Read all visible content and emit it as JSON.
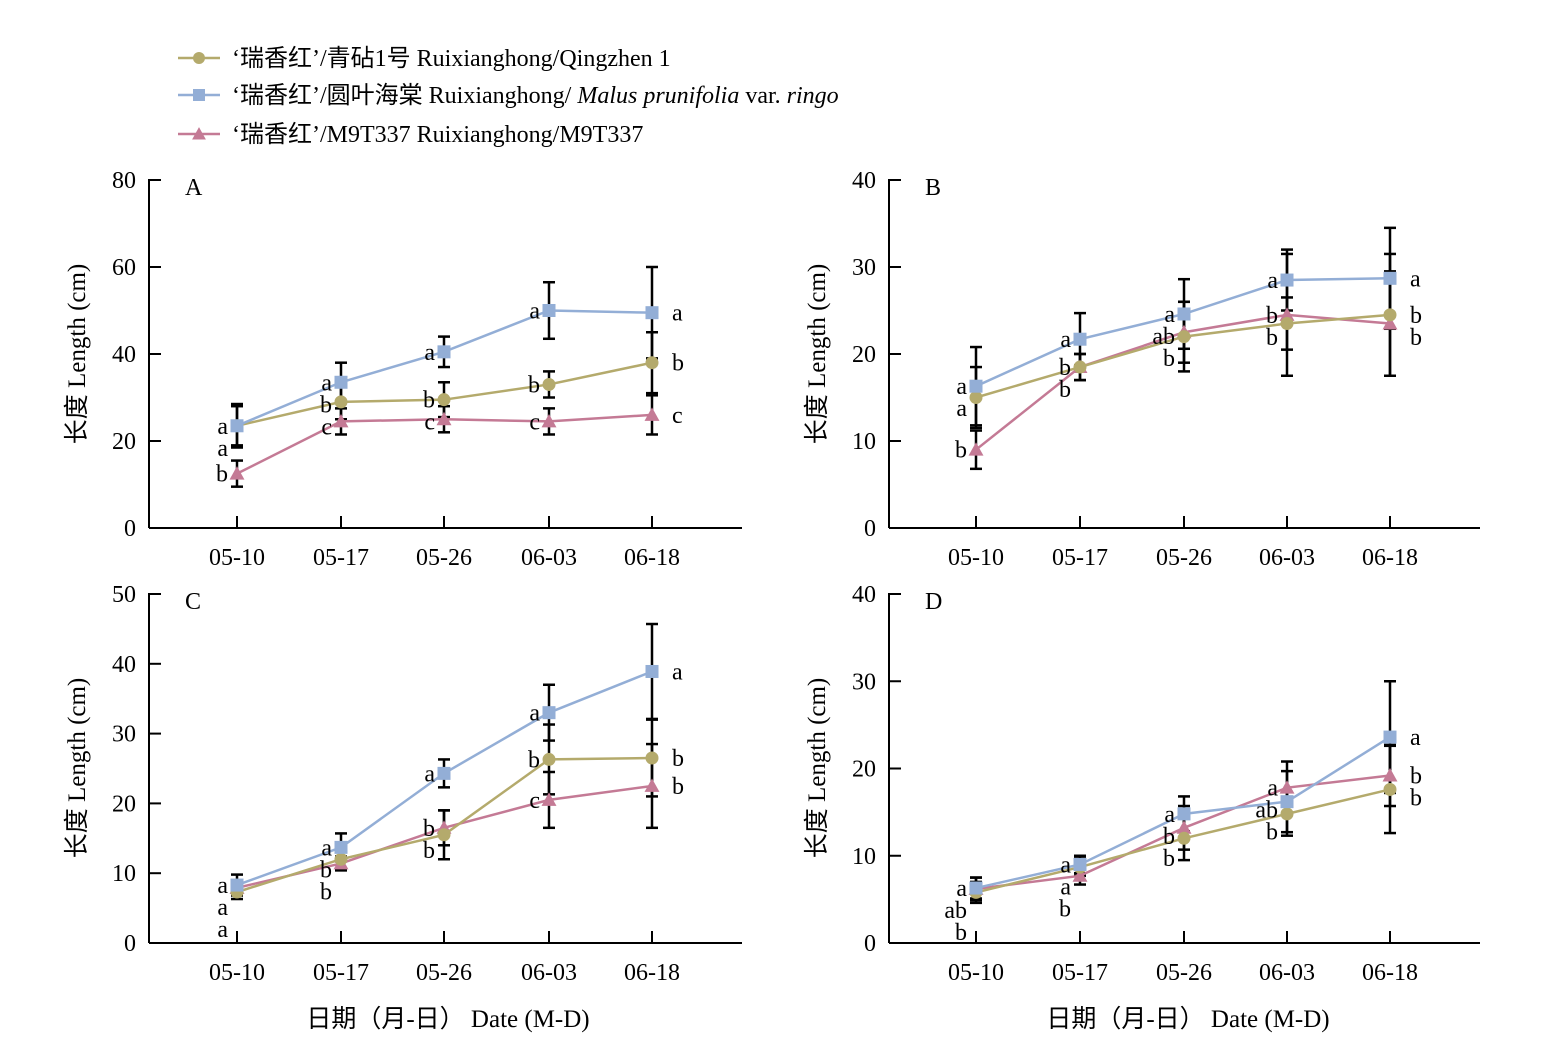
{
  "colors": {
    "series_1": "#b4aa6c",
    "series_2": "#93aed6",
    "series_3": "#c47a95",
    "axis": "#000000",
    "error_bar": "#000000"
  },
  "legend": {
    "items": [
      {
        "marker": "circle",
        "prefix": "‘瑞香红’/青砧1号 Ruixianghong/Qingzhen 1",
        "italic1": "",
        "mid": "",
        "italic2": ""
      },
      {
        "marker": "square",
        "prefix": "‘瑞香红’/圆叶海棠 Ruixianghong/ ",
        "italic1": "Malus prunifolia",
        "mid": " var. ",
        "italic2": "ringo"
      },
      {
        "marker": "triangle",
        "prefix": "‘瑞香红’/M9T337 Ruixianghong/M9T337",
        "italic1": "",
        "mid": "",
        "italic2": ""
      }
    ]
  },
  "x_axis_title": "日期（月-日） Date (M-D)",
  "chart_data": [
    {
      "type": "line",
      "panel_label": "A",
      "ylabel": "长度 Length (cm)",
      "categories": [
        "05-10",
        "05-17",
        "05-26",
        "06-03",
        "06-18"
      ],
      "ylim": [
        0,
        80
      ],
      "yticks": [
        0,
        20,
        40,
        60,
        80
      ],
      "series": [
        {
          "values": [
            23.5,
            29,
            29.5,
            33,
            38
          ],
          "err": [
            5,
            4,
            4,
            3,
            7
          ],
          "letters": [
            "a",
            "b",
            "b",
            "b",
            "b"
          ]
        },
        {
          "values": [
            23.5,
            33.5,
            40.5,
            50,
            49.5
          ],
          "err": [
            4.5,
            4.5,
            3.5,
            6.5,
            10.5
          ],
          "letters": [
            "a",
            "a",
            "a",
            "a",
            "a"
          ]
        },
        {
          "values": [
            12.5,
            24.5,
            25,
            24.5,
            26
          ],
          "err": [
            3,
            3,
            3,
            3,
            4.5
          ],
          "letters": [
            "b",
            "c",
            "c",
            "c",
            "c"
          ]
        }
      ]
    },
    {
      "type": "line",
      "panel_label": "B",
      "ylabel": "长度 Length (cm)",
      "categories": [
        "05-10",
        "05-17",
        "05-26",
        "06-03",
        "06-18"
      ],
      "ylim": [
        0,
        40
      ],
      "yticks": [
        0,
        10,
        20,
        30,
        40
      ],
      "series": [
        {
          "values": [
            15,
            18.5,
            22,
            23.5,
            24.5
          ],
          "err": [
            3.5,
            1.5,
            4,
            3,
            7
          ],
          "letters": [
            "a",
            "b",
            "b",
            "b",
            "b"
          ]
        },
        {
          "values": [
            16.3,
            21.7,
            24.6,
            28.5,
            28.7
          ],
          "err": [
            4.5,
            3,
            4,
            3.5,
            5.8
          ],
          "letters": [
            "a",
            "a",
            "a",
            "a",
            "a"
          ]
        },
        {
          "values": [
            9,
            18.5,
            22.5,
            24.5,
            23.5
          ],
          "err": [
            2.2,
            1.5,
            3.5,
            7,
            6
          ],
          "letters": [
            "b",
            "b",
            "ab",
            "b",
            "b"
          ]
        }
      ]
    },
    {
      "type": "line",
      "panel_label": "C",
      "ylabel": "长度 Length (cm)",
      "categories": [
        "05-10",
        "05-17",
        "05-26",
        "06-03",
        "06-18"
      ],
      "ylim": [
        0,
        50
      ],
      "yticks": [
        0,
        10,
        20,
        30,
        40,
        50
      ],
      "series": [
        {
          "values": [
            7.3,
            12,
            15.5,
            26.3,
            26.5
          ],
          "err": [
            1,
            1.5,
            3.5,
            5,
            5.5
          ],
          "letters": [
            "a",
            "b",
            "b",
            "b",
            "b"
          ]
        },
        {
          "values": [
            8.3,
            13.7,
            24.3,
            33,
            38.9
          ],
          "err": [
            1.5,
            2,
            2,
            4,
            6.8
          ],
          "letters": [
            "a",
            "a",
            "a",
            "a",
            "a"
          ]
        },
        {
          "values": [
            7.9,
            11.4,
            16.5,
            20.5,
            22.5
          ],
          "err": [
            1,
            1,
            2.5,
            4,
            6
          ],
          "letters": [
            "a",
            "b",
            "b",
            "c",
            "b"
          ]
        }
      ]
    },
    {
      "type": "line",
      "panel_label": "D",
      "ylabel": "长度 Length (cm)",
      "categories": [
        "05-10",
        "05-17",
        "05-26",
        "06-03",
        "06-18"
      ],
      "ylim": [
        0,
        40
      ],
      "yticks": [
        0,
        10,
        20,
        30,
        40
      ],
      "series": [
        {
          "values": [
            5.8,
            8.7,
            12,
            14.8,
            17.6
          ],
          "err": [
            1.2,
            1,
            2.5,
            2.5,
            5
          ],
          "letters": [
            "b",
            "a",
            "b",
            "b",
            "b"
          ]
        },
        {
          "values": [
            6.3,
            9,
            14.8,
            16.2,
            23.6
          ],
          "err": [
            1.2,
            1,
            2,
            3.5,
            6.4
          ],
          "letters": [
            "a",
            "a",
            "a",
            "ab",
            "a"
          ]
        },
        {
          "values": [
            6.2,
            7.7,
            13.2,
            17.8,
            19.2
          ],
          "err": [
            1.3,
            1,
            2.5,
            3,
            3.5
          ],
          "letters": [
            "ab",
            "b",
            "b",
            "a",
            "b"
          ]
        }
      ]
    }
  ]
}
